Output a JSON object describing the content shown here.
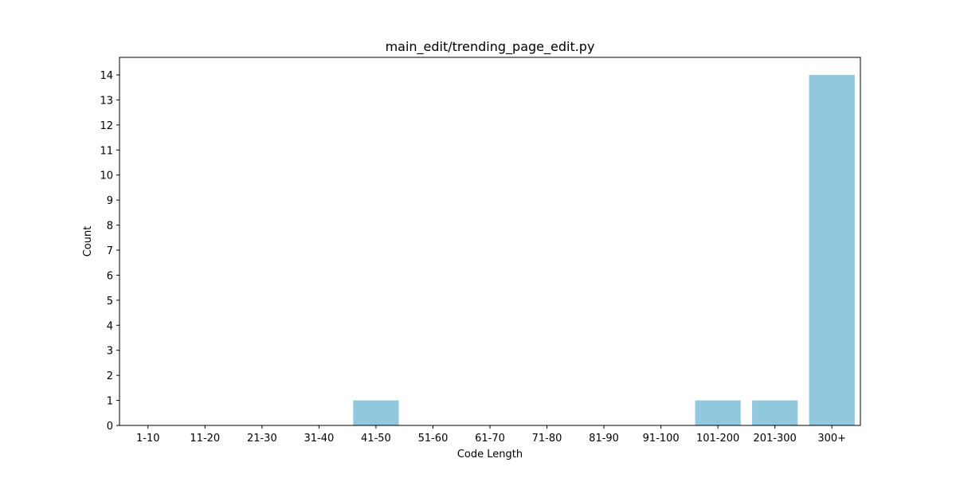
{
  "chart_data": {
    "type": "bar",
    "title": "main_edit/trending_page_edit.py",
    "xlabel": "Code Length",
    "ylabel": "Count",
    "categories": [
      "1-10",
      "11-20",
      "21-30",
      "31-40",
      "41-50",
      "51-60",
      "61-70",
      "71-80",
      "81-90",
      "91-100",
      "101-200",
      "201-300",
      "300+"
    ],
    "values": [
      0,
      0,
      0,
      0,
      1,
      0,
      0,
      0,
      0,
      0,
      1,
      1,
      14
    ],
    "ylim": [
      0,
      14.7
    ],
    "yticks": [
      0,
      1,
      2,
      3,
      4,
      5,
      6,
      7,
      8,
      9,
      10,
      11,
      12,
      13,
      14
    ],
    "bar_color": "#92c8de",
    "grid": false,
    "legend": "none"
  }
}
